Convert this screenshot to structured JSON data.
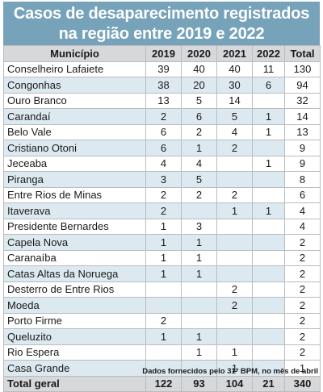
{
  "title": {
    "line1": "Casos de desaparecimento registrados",
    "line2": "na região entre 2019 e 2022"
  },
  "table": {
    "headers": [
      "Município",
      "2019",
      "2020",
      "2021",
      "2022",
      "Total"
    ],
    "rows": [
      [
        "Conselheiro Lafaiete",
        "39",
        "40",
        "40",
        "11",
        "130"
      ],
      [
        "Congonhas",
        "38",
        "20",
        "30",
        "6",
        "94"
      ],
      [
        "Ouro Branco",
        "13",
        "5",
        "14",
        "",
        "32"
      ],
      [
        "Carandaí",
        "2",
        "6",
        "5",
        "1",
        "14"
      ],
      [
        "Belo Vale",
        "6",
        "2",
        "4",
        "1",
        "13"
      ],
      [
        "Cristiano Otoni",
        "6",
        "1",
        "2",
        "",
        "9"
      ],
      [
        "Jeceaba",
        "4",
        "4",
        "",
        "1",
        "9"
      ],
      [
        "Piranga",
        "3",
        "5",
        "",
        "",
        "8"
      ],
      [
        "Entre Rios de Minas",
        "2",
        "2",
        "2",
        "",
        "6"
      ],
      [
        "Itaverava",
        "2",
        "",
        "1",
        "1",
        "4"
      ],
      [
        "Presidente Bernardes",
        "1",
        "3",
        "",
        "",
        "4"
      ],
      [
        "Capela Nova",
        "1",
        "1",
        "",
        "",
        "2"
      ],
      [
        "Caranaíba",
        "1",
        "1",
        "",
        "",
        "2"
      ],
      [
        "Catas Altas da Noruega",
        "1",
        "1",
        "",
        "",
        "2"
      ],
      [
        "Desterro de Entre Rios",
        "",
        "",
        "2",
        "",
        "2"
      ],
      [
        "Moeda",
        "",
        "",
        "2",
        "",
        "2"
      ],
      [
        "Porto Firme",
        "2",
        "",
        "",
        "",
        "2"
      ],
      [
        "Queluzito",
        "1",
        "1",
        "",
        "",
        "2"
      ],
      [
        "Rio Espera",
        "",
        "1",
        "1",
        "",
        "2"
      ],
      [
        "Casa Grande",
        "",
        "",
        "1",
        "",
        "1"
      ]
    ],
    "footer": [
      "Total geral",
      "122",
      "93",
      "104",
      "21",
      "340"
    ]
  },
  "source_note": "Dados fornecidos pelo 31º BPM, no mês de abril",
  "colors": {
    "banner": "#77a3ba",
    "header_bg": "#d7d8d9",
    "stripe": "#dde9f0",
    "border": "#b9bcbf"
  }
}
